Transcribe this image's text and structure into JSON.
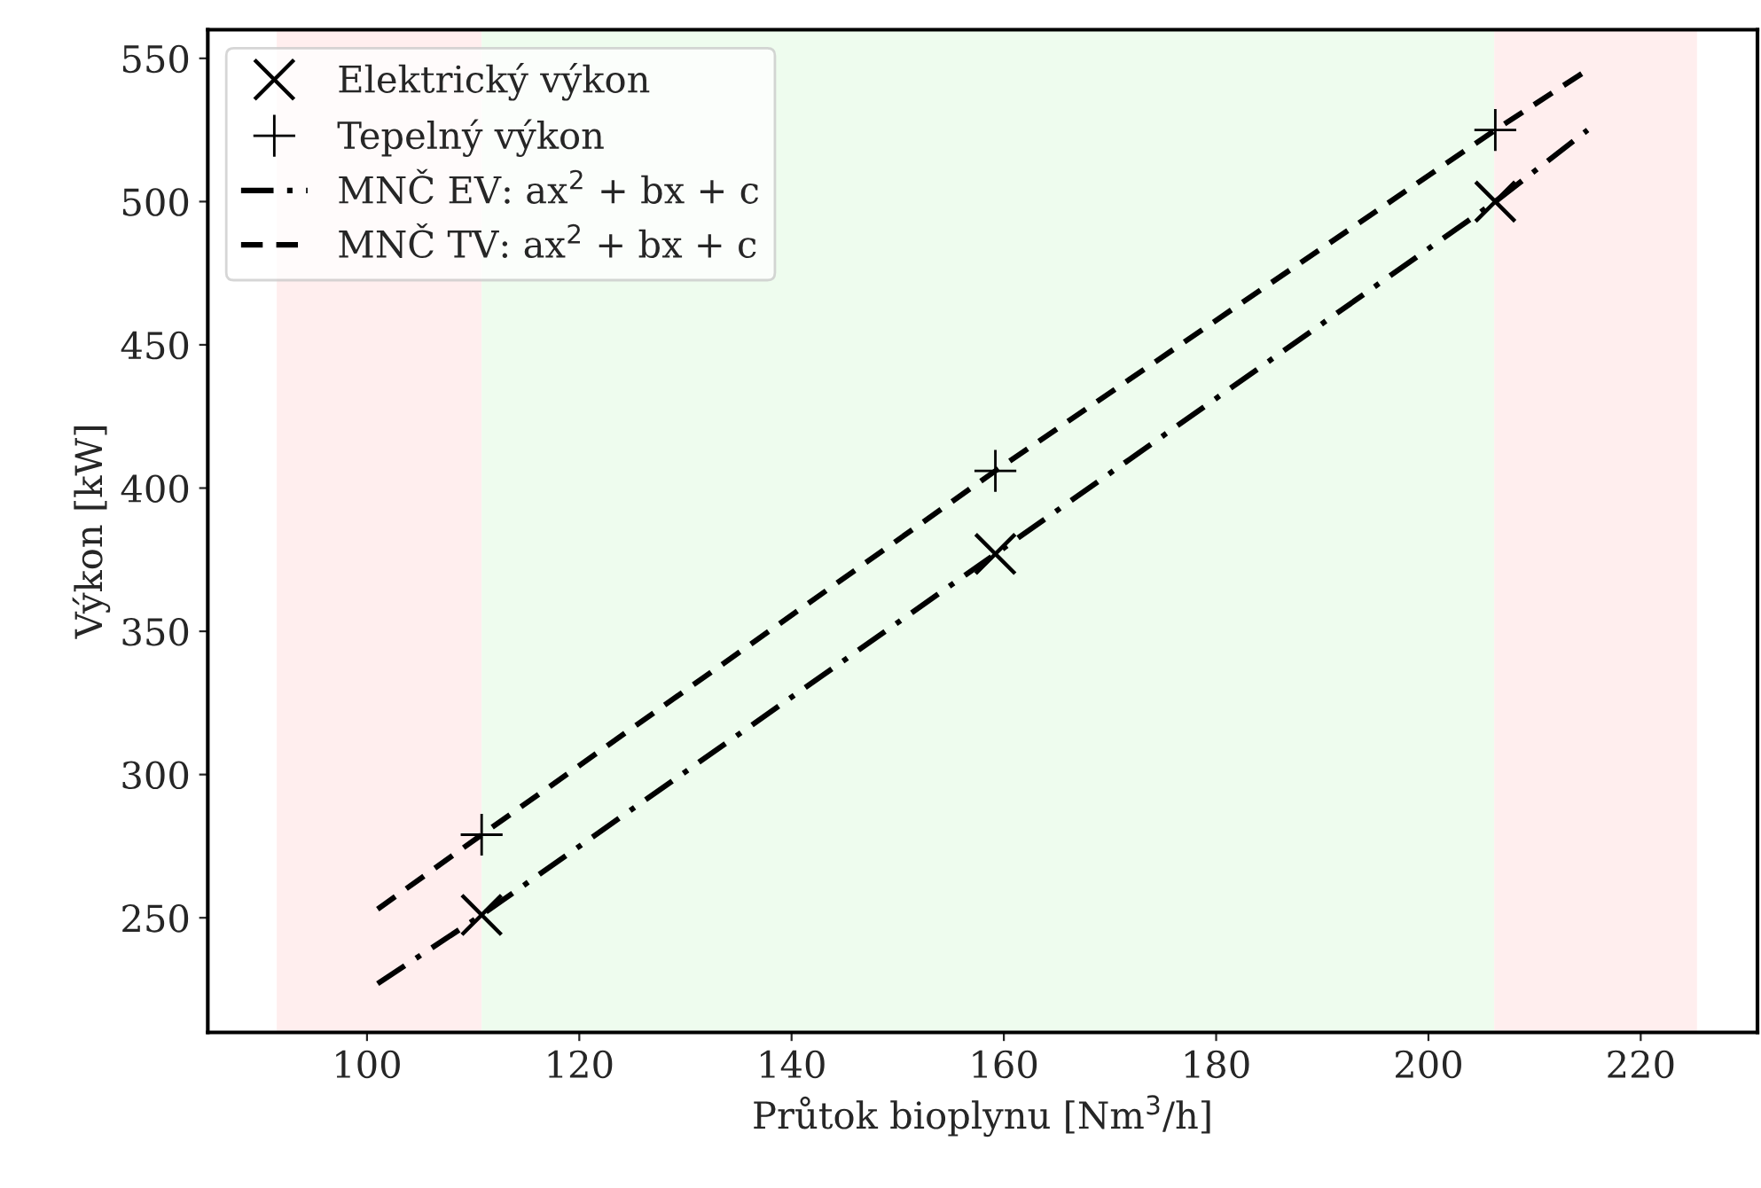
{
  "chart_data": {
    "type": "scatter",
    "xlabel": "Průtok bioplynu [Nm$^{3}$/h]",
    "ylabel": "Výkon [kW]",
    "xlim": [
      85,
      231
    ],
    "ylim": [
      210,
      560
    ],
    "xticks": [
      100,
      120,
      140,
      160,
      180,
      200,
      220
    ],
    "yticks": [
      250,
      300,
      350,
      400,
      450,
      500,
      550
    ],
    "grid": false,
    "legend": "top left",
    "bands": [
      {
        "axis": "x",
        "from": 91.5,
        "to": 110.8,
        "color": "#ffeeee"
      },
      {
        "axis": "x",
        "from": 110.8,
        "to": 206.2,
        "color": "#eefcee"
      },
      {
        "axis": "x",
        "from": 206.2,
        "to": 225.3,
        "color": "#ffeeee"
      }
    ],
    "series": [
      {
        "name": "Elektrický výkon",
        "marker": "cross",
        "color": "#000000",
        "x": [
          110.8,
          159.2,
          206.3
        ],
        "values": [
          251,
          377,
          500
        ]
      },
      {
        "name": "Tepelný výkon",
        "marker": "cross",
        "color": "#000000",
        "x": [
          110.8,
          159.2,
          206.3
        ],
        "values": [
          279,
          406,
          525
        ]
      },
      {
        "name": "MNČ EV: ax$^{2}$ + bx + c",
        "type": "line",
        "line_style": "dashdot",
        "color": "#000000",
        "x": [
          101,
          110.8,
          159.2,
          206.3,
          215
        ],
        "values": [
          227,
          251,
          377,
          500,
          525
        ]
      },
      {
        "name": "MNČ TV: ax$^{2}$ + bx + c",
        "type": "line",
        "line_style": "dashed",
        "color": "#000000",
        "x": [
          101,
          110.8,
          159.2,
          206.3,
          215
        ],
        "values": [
          253,
          279,
          406,
          525,
          546
        ]
      }
    ]
  }
}
